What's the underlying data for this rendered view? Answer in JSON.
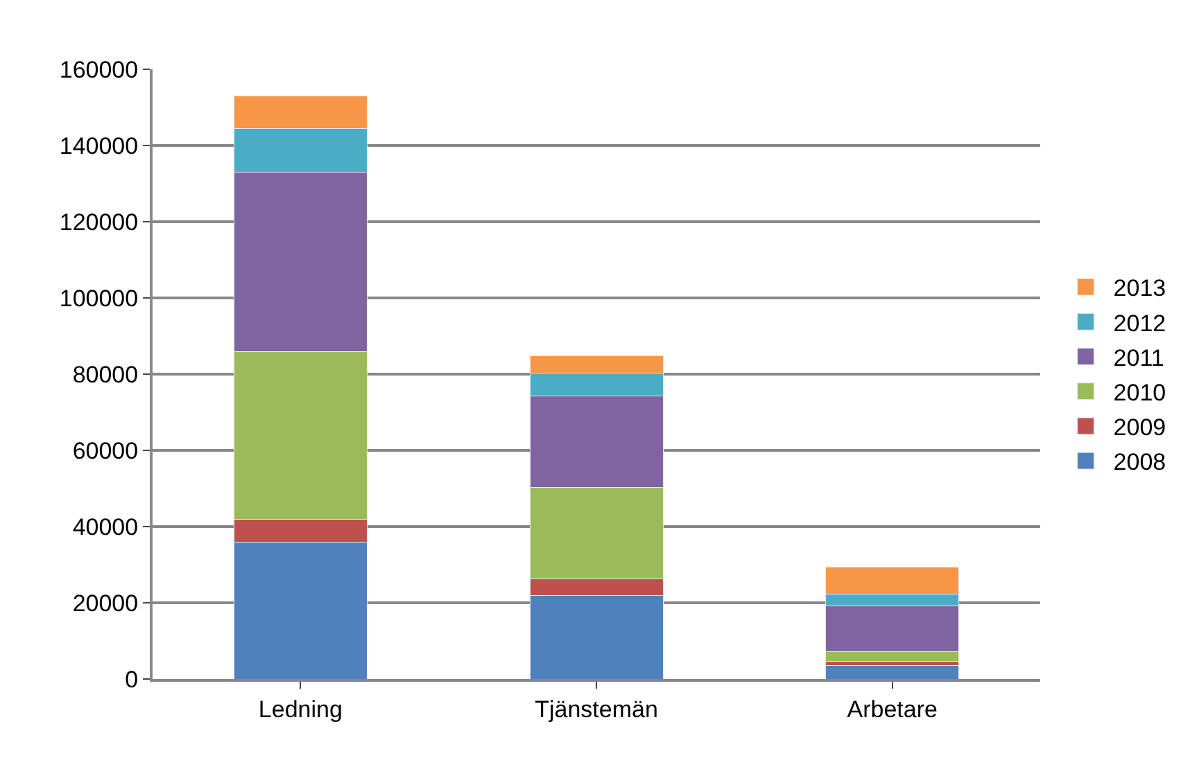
{
  "chart_data": {
    "type": "bar",
    "stacked": true,
    "categories": [
      "Ledning",
      "Tjänstemän",
      "Arbetare"
    ],
    "series": [
      {
        "name": "2008",
        "color": "#4f81bd",
        "values": [
          36000,
          22000,
          3600
        ]
      },
      {
        "name": "2009",
        "color": "#c0504d",
        "values": [
          6000,
          4300,
          1000
        ]
      },
      {
        "name": "2010",
        "color": "#9bbb59",
        "values": [
          44000,
          24000,
          2500
        ]
      },
      {
        "name": "2011",
        "color": "#8064a2",
        "values": [
          47000,
          24000,
          12000
        ]
      },
      {
        "name": "2012",
        "color": "#4bacc6",
        "values": [
          11500,
          6000,
          3200
        ]
      },
      {
        "name": "2013",
        "color": "#f79646",
        "values": [
          8500,
          4500,
          7000
        ]
      }
    ],
    "ylim": [
      0,
      160000
    ],
    "yticks": [
      0,
      20000,
      40000,
      60000,
      80000,
      100000,
      120000,
      140000,
      160000
    ],
    "grid": "y",
    "legend": "right"
  }
}
